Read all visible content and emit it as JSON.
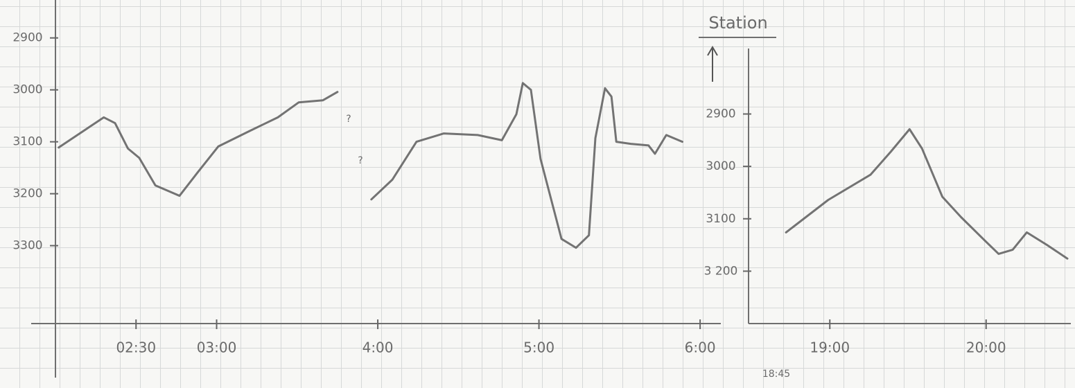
{
  "chart_data": [
    {
      "type": "line",
      "x": [
        2.02,
        2.17,
        2.3,
        2.37,
        2.45,
        2.52,
        2.62,
        2.77,
        2.88,
        3.01,
        3.2,
        3.38,
        3.51,
        3.66,
        3.75,
        null,
        3.96,
        4.09,
        4.24,
        4.41,
        4.62,
        4.77,
        4.86,
        4.9,
        4.95,
        5.01,
        5.14,
        5.23,
        5.31,
        5.35,
        5.41,
        5.45,
        5.48,
        5.57,
        5.68,
        5.72,
        5.79,
        5.89
      ],
      "series": [
        {
          "color": "#5c5c5c",
          "values": [
            3111,
            3080,
            3053,
            3064,
            3113,
            3131,
            3184,
            3204,
            3160,
            3109,
            3080,
            3053,
            3024,
            3020,
            3004,
            null,
            3211,
            3173,
            3100,
            3084,
            3087,
            3097,
            3047,
            2987,
            3000,
            3133,
            3287,
            3304,
            3280,
            3093,
            2997,
            3013,
            3100,
            3104,
            3107,
            3123,
            3087,
            3100
          ]
        }
      ],
      "xlim": [
        2,
        6.15
      ],
      "xticks": [
        {
          "value": 2.5,
          "label": "02:30"
        },
        {
          "value": 3,
          "label": "03:00"
        },
        {
          "value": 4,
          "label": "4:00"
        },
        {
          "value": 5,
          "label": "5:00"
        },
        {
          "value": 6,
          "label": "6:00"
        }
      ],
      "ylim": [
        3450,
        2827
      ],
      "yticks": [
        2900,
        3000,
        3100,
        3200,
        3300
      ],
      "annotations": [
        "?",
        "?"
      ]
    },
    {
      "type": "line",
      "title": "Station",
      "x": [
        18.72,
        18.99,
        19.26,
        19.39,
        19.51,
        19.59,
        19.72,
        19.84,
        19.99,
        20.08,
        20.17,
        20.26,
        20.39,
        20.52
      ],
      "series": [
        {
          "color": "#5c5c5c",
          "values": [
            3126,
            3064,
            3016,
            2972,
            2929,
            2966,
            3058,
            3097,
            3141,
            3167,
            3159,
            3126,
            3150,
            3176
          ]
        }
      ],
      "xlim": [
        18.48,
        20.52
      ],
      "xticks": [
        {
          "value": 19,
          "label": "19:00"
        },
        {
          "value": 20,
          "label": "20:00"
        }
      ],
      "ylim": [
        3300,
        2775
      ],
      "yticks": [
        2900,
        3000,
        3100,
        {
          "value": 3200,
          "label": "3 200"
        }
      ],
      "annotations": [
        "18:45"
      ]
    }
  ]
}
